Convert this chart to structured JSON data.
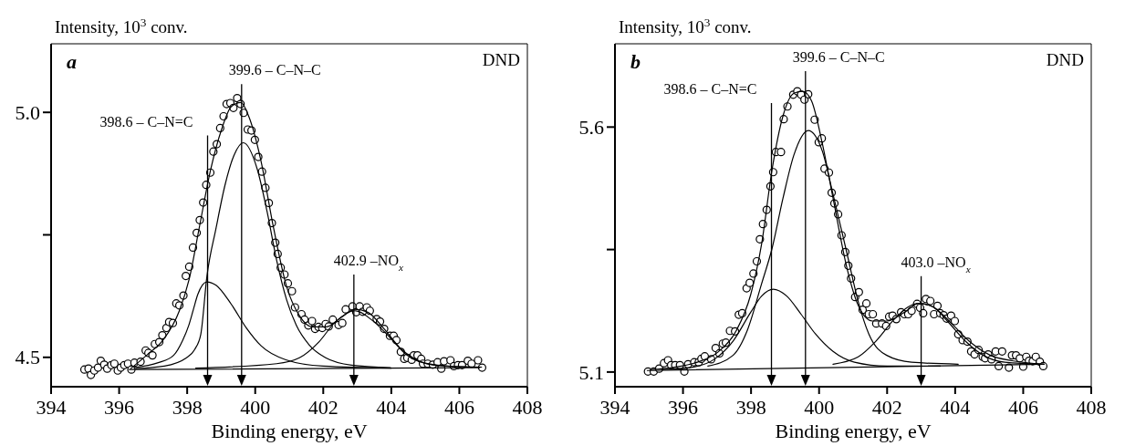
{
  "chart_data": [
    {
      "type": "line",
      "title": "a",
      "xlabel": "Binding energy, eV",
      "ylabel": "Intensity, 10$^{3}$ conv.",
      "xlim": [
        394,
        408
      ],
      "xticks": [
        394,
        396,
        398,
        400,
        402,
        404,
        406,
        408
      ],
      "ylim": [
        4.44,
        5.14
      ],
      "yticks": [
        {
          "value": 5.0,
          "label": "5.0"
        },
        {
          "value": 4.75,
          "label": null
        },
        4.5
      ],
      "annotations": [
        "DND"
      ],
      "ref_lines": [
        {
          "axis": "x",
          "value": 398.6,
          "label": "398.6 – C–N=C"
        },
        {
          "axis": "x",
          "value": 399.6,
          "label": "399.6 – C–N–C"
        },
        {
          "axis": "x",
          "value": 402.9,
          "label": "402.9 –NO$_{x}$"
        }
      ],
      "series": [
        {
          "type": "scatter",
          "marker": "circle",
          "color": "#000000",
          "x": [
            394.98,
            395.1,
            395.17,
            395.27,
            395.38,
            395.46,
            395.56,
            395.65,
            395.77,
            395.86,
            395.96,
            396.05,
            396.15,
            396.26,
            396.36,
            396.45,
            396.63,
            396.78,
            396.86,
            396.98,
            397.05,
            397.18,
            397.27,
            397.39,
            397.47,
            397.58,
            397.68,
            397.77,
            397.89,
            397.96,
            398.06,
            398.17,
            398.28,
            398.37,
            398.47,
            398.56,
            398.68,
            398.77,
            398.87,
            398.97,
            399.07,
            399.16,
            399.27,
            399.36,
            399.47,
            399.57,
            399.66,
            399.78,
            399.89,
            399.99,
            400.09,
            400.2,
            400.3,
            400.4,
            400.49,
            400.59,
            400.66,
            400.75,
            400.86,
            400.96,
            401.08,
            401.17,
            401.36,
            401.45,
            401.56,
            401.67,
            401.76,
            401.86,
            401.97,
            402.07,
            402.16,
            402.28,
            402.45,
            402.56,
            402.66,
            402.86,
            402.97,
            403.07,
            403.16,
            403.28,
            403.37,
            403.57,
            403.67,
            403.79,
            403.96,
            404.07,
            404.15,
            404.28,
            404.38,
            404.47,
            404.6,
            404.66,
            404.77,
            404.88,
            404.93,
            405.07,
            405.22,
            405.36,
            405.47,
            405.55,
            405.74,
            405.84,
            405.96,
            406.08,
            406.25,
            406.36,
            406.55,
            406.67
          ],
          "values": [
            4.475,
            4.477,
            4.464,
            4.473,
            4.479,
            4.493,
            4.485,
            4.477,
            4.484,
            4.487,
            4.473,
            4.479,
            4.484,
            4.487,
            4.475,
            4.489,
            4.491,
            4.514,
            4.509,
            4.504,
            4.527,
            4.531,
            4.545,
            4.56,
            4.572,
            4.57,
            4.61,
            4.606,
            4.626,
            4.666,
            4.685,
            4.724,
            4.754,
            4.78,
            4.816,
            4.852,
            4.877,
            4.92,
            4.935,
            4.968,
            4.992,
            5.017,
            5.019,
            5.009,
            5.029,
            5.017,
            4.999,
            4.965,
            4.963,
            4.944,
            4.909,
            4.879,
            4.846,
            4.815,
            4.774,
            4.734,
            4.711,
            4.683,
            4.669,
            4.651,
            4.635,
            4.602,
            4.588,
            4.577,
            4.565,
            4.574,
            4.558,
            4.562,
            4.56,
            4.568,
            4.563,
            4.577,
            4.566,
            4.57,
            4.598,
            4.604,
            4.592,
            4.604,
            4.593,
            4.602,
            4.595,
            4.578,
            4.573,
            4.558,
            4.544,
            4.544,
            4.535,
            4.511,
            4.497,
            4.499,
            4.495,
            4.504,
            4.504,
            4.497,
            4.487,
            4.487,
            4.485,
            4.49,
            4.477,
            4.492,
            4.494,
            4.482,
            4.484,
            4.484,
            4.493,
            4.487,
            4.494,
            4.479
          ]
        },
        {
          "color": "#000000",
          "x": [
            396.34,
            396.82,
            397.29,
            397.77,
            398.06,
            398.37,
            398.68,
            399.01,
            399.3,
            399.58,
            399.82,
            400.16,
            400.54,
            400.92,
            401.3,
            401.68,
            402.07,
            402.54,
            402.93,
            403.31,
            403.79,
            404.26,
            404.74,
            405.4,
            406.65
          ],
          "values": [
            4.477,
            4.505,
            4.535,
            4.595,
            4.66,
            4.77,
            4.88,
            4.965,
            5.012,
            5.02,
            4.99,
            4.904,
            4.764,
            4.645,
            4.585,
            4.562,
            4.562,
            4.582,
            4.598,
            4.592,
            4.558,
            4.519,
            4.495,
            4.483,
            4.48
          ]
        },
        {
          "color": "#000000",
          "x": [
            396.44,
            397.15,
            397.6,
            397.87,
            398.05,
            398.18,
            398.31,
            398.58,
            398.85,
            399.29,
            399.74,
            400.18,
            400.9,
            402.0,
            404.0
          ],
          "values": [
            4.479,
            4.489,
            4.504,
            4.535,
            4.566,
            4.597,
            4.628,
            4.654,
            4.647,
            4.609,
            4.56,
            4.523,
            4.495,
            4.482,
            4.478
          ]
        },
        {
          "color": "#000000",
          "x": [
            396.5,
            397.33,
            397.96,
            398.22,
            398.4,
            398.58,
            398.85,
            399.11,
            399.38,
            399.65,
            400.06,
            400.35,
            400.63,
            400.92,
            401.21,
            401.59,
            402.07,
            402.83,
            403.98
          ],
          "values": [
            4.477,
            4.482,
            4.498,
            4.516,
            4.547,
            4.665,
            4.764,
            4.851,
            4.913,
            4.938,
            4.884,
            4.797,
            4.698,
            4.618,
            4.565,
            4.525,
            4.499,
            4.484,
            4.479
          ]
        },
        {
          "color": "#000000",
          "x": [
            398.25,
            400.63,
            401.3,
            401.88,
            402.35,
            402.93,
            403.5,
            403.98,
            404.45,
            404.93,
            405.89,
            406.65
          ],
          "values": [
            4.478,
            4.487,
            4.499,
            4.532,
            4.572,
            4.595,
            4.572,
            4.539,
            4.505,
            4.489,
            4.481,
            4.48
          ]
        },
        {
          "color": "#000000",
          "x": [
            396.3,
            406.6
          ],
          "values": [
            4.475,
            4.479
          ]
        }
      ]
    },
    {
      "type": "line",
      "title": "b",
      "xlabel": "Binding energy, eV",
      "ylabel": "Intensity, 10$^{3}$ conv.",
      "xlim": [
        394,
        408
      ],
      "xticks": [
        394,
        396,
        398,
        400,
        402,
        404,
        406,
        408
      ],
      "ylim": [
        5.07,
        5.77
      ],
      "yticks": [
        5.6,
        {
          "value": 5.35,
          "label": null
        },
        5.1
      ],
      "annotations": [
        "DND"
      ],
      "ref_lines": [
        {
          "axis": "x",
          "value": 398.6,
          "label": "398.6 – C–N=C"
        },
        {
          "axis": "x",
          "value": 399.6,
          "label": "399.6 – C–N–C"
        },
        {
          "axis": "x",
          "value": 403.0,
          "label": "403.0 –NO$_{x}$"
        }
      ],
      "series": [
        {
          "type": "scatter",
          "marker": "circle",
          "color": "#000000",
          "x": [
            394.97,
            395.14,
            395.3,
            395.44,
            395.56,
            395.65,
            395.77,
            395.91,
            396.04,
            396.15,
            396.33,
            396.46,
            396.54,
            396.64,
            396.83,
            396.96,
            397.07,
            397.17,
            397.26,
            397.38,
            397.53,
            397.64,
            397.74,
            397.87,
            397.96,
            398.07,
            398.17,
            398.26,
            398.35,
            398.46,
            398.57,
            398.65,
            398.73,
            398.88,
            398.96,
            399.07,
            399.24,
            399.36,
            399.47,
            399.57,
            399.68,
            399.87,
            399.99,
            400.08,
            400.16,
            400.29,
            400.37,
            400.45,
            400.56,
            400.66,
            400.77,
            400.86,
            400.94,
            401.06,
            401.17,
            401.28,
            401.39,
            401.46,
            401.58,
            401.68,
            401.85,
            401.97,
            402.06,
            402.16,
            402.27,
            402.41,
            402.51,
            402.62,
            402.72,
            402.88,
            402.97,
            403.06,
            403.14,
            403.27,
            403.38,
            403.48,
            403.56,
            403.66,
            403.75,
            403.88,
            403.99,
            404.09,
            404.22,
            404.36,
            404.47,
            404.57,
            404.69,
            404.81,
            404.88,
            404.97,
            405.07,
            405.19,
            405.28,
            405.38,
            405.58,
            405.67,
            405.79,
            405.9,
            406.0,
            406.09,
            406.17,
            406.28,
            406.37,
            406.49,
            406.59
          ],
          "values": [
            5.101,
            5.101,
            5.107,
            5.118,
            5.124,
            5.114,
            5.114,
            5.114,
            5.101,
            5.116,
            5.12,
            5.12,
            5.127,
            5.132,
            5.126,
            5.149,
            5.138,
            5.158,
            5.16,
            5.184,
            5.183,
            5.217,
            5.22,
            5.271,
            5.282,
            5.301,
            5.326,
            5.371,
            5.402,
            5.431,
            5.479,
            5.508,
            5.549,
            5.549,
            5.616,
            5.642,
            5.666,
            5.673,
            5.666,
            5.656,
            5.667,
            5.615,
            5.569,
            5.577,
            5.515,
            5.507,
            5.466,
            5.444,
            5.422,
            5.379,
            5.345,
            5.317,
            5.291,
            5.253,
            5.263,
            5.227,
            5.24,
            5.218,
            5.218,
            5.199,
            5.199,
            5.194,
            5.213,
            5.215,
            5.208,
            5.222,
            5.218,
            5.218,
            5.225,
            5.239,
            5.231,
            5.22,
            5.249,
            5.245,
            5.218,
            5.235,
            5.22,
            5.216,
            5.209,
            5.215,
            5.204,
            5.177,
            5.165,
            5.162,
            5.142,
            5.136,
            5.145,
            5.131,
            5.128,
            5.136,
            5.126,
            5.142,
            5.112,
            5.142,
            5.109,
            5.134,
            5.134,
            5.128,
            5.111,
            5.131,
            5.123,
            5.122,
            5.131,
            5.121,
            5.112
          ]
        },
        {
          "color": "#000000",
          "x": [
            395.05,
            395.68,
            396.42,
            397.05,
            397.57,
            397.99,
            398.31,
            398.62,
            398.94,
            399.26,
            399.52,
            399.78,
            400.1,
            400.41,
            400.83,
            401.15,
            401.57,
            401.99,
            402.51,
            402.93,
            403.35,
            403.88,
            404.41,
            405.04,
            405.67,
            406.61
          ],
          "values": [
            5.105,
            5.109,
            5.12,
            5.142,
            5.185,
            5.258,
            5.361,
            5.514,
            5.623,
            5.669,
            5.673,
            5.653,
            5.565,
            5.455,
            5.309,
            5.236,
            5.204,
            5.204,
            5.222,
            5.24,
            5.233,
            5.2,
            5.163,
            5.134,
            5.123,
            5.116
          ]
        },
        {
          "color": "#000000",
          "x": [
            395.37,
            396.21,
            396.94,
            397.47,
            397.99,
            398.31,
            398.65,
            399.05,
            399.47,
            399.89,
            400.41,
            401.04,
            402.0,
            403.56
          ],
          "values": [
            5.105,
            5.109,
            5.127,
            5.163,
            5.222,
            5.255,
            5.269,
            5.255,
            5.218,
            5.178,
            5.142,
            5.12,
            5.112,
            5.112
          ]
        },
        {
          "color": "#000000",
          "x": [
            396.73,
            397.47,
            397.89,
            398.31,
            398.62,
            398.94,
            399.26,
            399.68,
            400.1,
            400.41,
            400.83,
            401.15,
            401.46,
            401.99,
            402.72,
            404.09
          ],
          "values": [
            5.112,
            5.134,
            5.185,
            5.28,
            5.353,
            5.455,
            5.543,
            5.593,
            5.55,
            5.463,
            5.339,
            5.244,
            5.178,
            5.134,
            5.12,
            5.116
          ]
        },
        {
          "color": "#000000",
          "x": [
            400.41,
            401.15,
            401.67,
            402.2,
            402.62,
            402.93,
            403.35,
            403.77,
            404.3,
            404.83,
            405.46,
            406.61
          ],
          "values": [
            5.116,
            5.131,
            5.163,
            5.207,
            5.233,
            5.24,
            5.233,
            5.204,
            5.163,
            5.134,
            5.12,
            5.116
          ]
        },
        {
          "color": "#000000",
          "x": [
            394.95,
            406.61
          ],
          "values": [
            5.103,
            5.116
          ]
        }
      ]
    }
  ]
}
